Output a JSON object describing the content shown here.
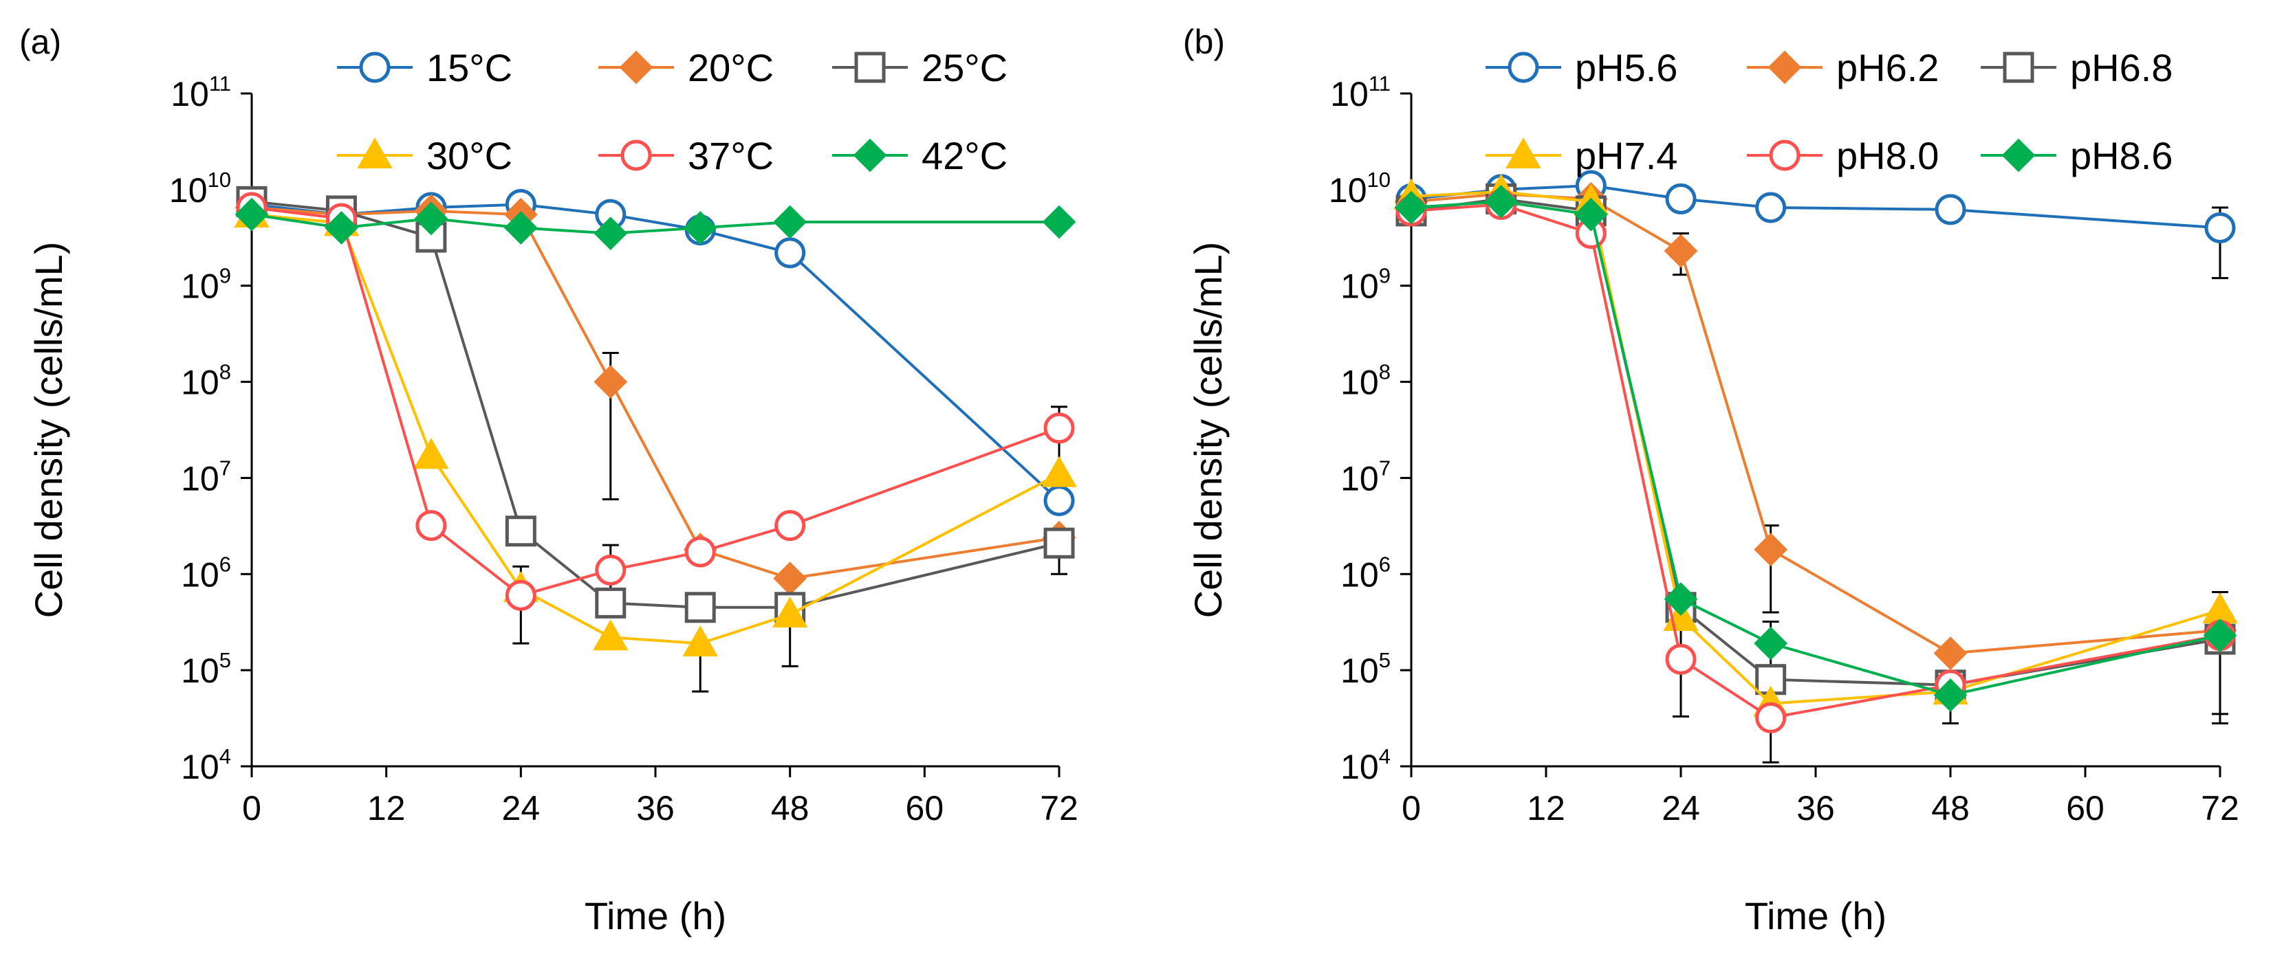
{
  "chart_data": [
    {
      "type": "line",
      "panel_label": "(a)",
      "xlabel": "Time (h)",
      "ylabel": "Cell density (cells/mL)",
      "yscale": "log",
      "xlim": [
        0,
        72
      ],
      "ylim": [
        10000,
        100000000000
      ],
      "x_ticks": [
        "0",
        "12",
        "24",
        "36",
        "48",
        "60",
        "72"
      ],
      "y_ticks": [
        {
          "base": "10",
          "exp": "4"
        },
        {
          "base": "10",
          "exp": "5"
        },
        {
          "base": "10",
          "exp": "6"
        },
        {
          "base": "10",
          "exp": "7"
        },
        {
          "base": "10",
          "exp": "8"
        },
        {
          "base": "10",
          "exp": "9"
        },
        {
          "base": "10",
          "exp": "10"
        },
        {
          "base": "10",
          "exp": "11"
        }
      ],
      "series": [
        {
          "name": "15°C",
          "color": "#1f6fb9",
          "marker": "circle",
          "x": [
            0,
            8,
            16,
            24,
            32,
            40,
            48,
            72
          ],
          "y": [
            7000000000,
            5500000000,
            6500000000,
            7000000000,
            5500000000,
            3800000000,
            2200000000,
            5800000
          ],
          "err": [
            0,
            0,
            0,
            0,
            0,
            0,
            0,
            0
          ]
        },
        {
          "name": "20°C",
          "color": "#ed7d31",
          "marker": "diamond",
          "x": [
            0,
            8,
            16,
            24,
            32,
            40,
            48,
            72
          ],
          "y": [
            6500000000,
            5500000000,
            6000000000,
            5500000000,
            100000000,
            1800000,
            900000,
            2400000
          ],
          "err": [
            0,
            0,
            0,
            0,
            200000000,
            0,
            0,
            0
          ]
        },
        {
          "name": "25°C",
          "color": "#595959",
          "marker": "square",
          "x": [
            0,
            8,
            16,
            24,
            32,
            40,
            48,
            72
          ],
          "y": [
            7500000000,
            6000000000,
            3200000000,
            2800000,
            500000,
            450000,
            450000,
            2100000
          ],
          "err": [
            0,
            0,
            0,
            0,
            0,
            0,
            0,
            0
          ]
        },
        {
          "name": "30°C",
          "color": "#ffc000",
          "marker": "triangle",
          "x": [
            0,
            8,
            16,
            24,
            32,
            40,
            48,
            72
          ],
          "y": [
            5500000000,
            4500000000,
            17000000,
            700000,
            220000,
            190000,
            380000,
            11000000
          ],
          "err": [
            0,
            0,
            0,
            0,
            0,
            0,
            0,
            0
          ]
        },
        {
          "name": "37°C",
          "color": "#ff5050",
          "marker": "circle",
          "x": [
            0,
            8,
            16,
            24,
            32,
            40,
            48,
            72
          ],
          "y": [
            6500000000,
            5000000000,
            3200000,
            600000,
            1100000,
            1700000,
            3200000,
            33000000
          ],
          "err": [
            0,
            0,
            0,
            0,
            0,
            0,
            0,
            0
          ]
        },
        {
          "name": "42°C",
          "color": "#00b050",
          "marker": "diamond",
          "x": [
            0,
            8,
            16,
            24,
            32,
            40,
            48,
            72
          ],
          "y": [
            5500000000,
            4000000000,
            5000000000,
            4000000000,
            3500000000,
            4000000000,
            4600000000,
            4600000000
          ],
          "err": [
            0,
            0,
            0,
            0,
            0,
            0,
            0,
            0
          ]
        }
      ],
      "error_bars": [
        {
          "x": 24,
          "y_low": 190000,
          "y_high": 1200000
        },
        {
          "x": 32,
          "y_low": 6000000,
          "y_high": 200000000
        },
        {
          "x": 32,
          "y_low": 500000,
          "y_high": 2000000
        },
        {
          "x": 40,
          "y_low": 60000,
          "y_high": 190000
        },
        {
          "x": 48,
          "y_low": 110000,
          "y_high": 380000
        },
        {
          "x": 72,
          "y_low": 1000000,
          "y_high": 2100000
        },
        {
          "x": 72,
          "y_low": 11000000,
          "y_high": 55000000
        }
      ]
    },
    {
      "type": "line",
      "panel_label": "(b)",
      "xlabel": "Time (h)",
      "ylabel": "Cell density (cells/mL)",
      "yscale": "log",
      "xlim": [
        0,
        72
      ],
      "ylim": [
        10000,
        100000000000
      ],
      "x_ticks": [
        "0",
        "12",
        "24",
        "36",
        "48",
        "60",
        "72"
      ],
      "y_ticks": [
        {
          "base": "10",
          "exp": "4"
        },
        {
          "base": "10",
          "exp": "5"
        },
        {
          "base": "10",
          "exp": "6"
        },
        {
          "base": "10",
          "exp": "7"
        },
        {
          "base": "10",
          "exp": "8"
        },
        {
          "base": "10",
          "exp": "9"
        },
        {
          "base": "10",
          "exp": "10"
        },
        {
          "base": "10",
          "exp": "11"
        }
      ],
      "series": [
        {
          "name": "pH5.6",
          "color": "#1f6fb9",
          "marker": "circle",
          "x": [
            0,
            8,
            16,
            24,
            32,
            48,
            72
          ],
          "y": [
            8000000000,
            10000000000,
            11000000000,
            8000000000,
            6500000000,
            6200000000,
            4000000000
          ],
          "err": [
            0,
            0,
            0,
            0,
            0,
            0,
            0
          ]
        },
        {
          "name": "pH6.2",
          "color": "#ed7d31",
          "marker": "diamond",
          "x": [
            0,
            8,
            16,
            24,
            32,
            48,
            72
          ],
          "y": [
            7500000000,
            9000000000,
            8000000000,
            2300000000,
            1800000,
            150000,
            260000
          ],
          "err": [
            0,
            0,
            0,
            0,
            0,
            0,
            0
          ]
        },
        {
          "name": "pH6.8",
          "color": "#595959",
          "marker": "square",
          "x": [
            0,
            8,
            16,
            24,
            32,
            48,
            72
          ],
          "y": [
            6000000000,
            8000000000,
            6000000000,
            450000,
            80000,
            70000,
            210000
          ],
          "err": [
            0,
            0,
            0,
            0,
            0,
            0,
            0
          ]
        },
        {
          "name": "pH7.4",
          "color": "#ffc000",
          "marker": "triangle",
          "x": [
            0,
            8,
            16,
            24,
            32,
            48,
            72
          ],
          "y": [
            8500000000,
            9500000000,
            7500000000,
            350000,
            45000,
            60000,
            420000
          ],
          "err": [
            0,
            0,
            0,
            0,
            0,
            0,
            0
          ]
        },
        {
          "name": "pH8.0",
          "color": "#ff5050",
          "marker": "circle",
          "x": [
            0,
            8,
            16,
            24,
            32,
            48,
            72
          ],
          "y": [
            6000000000,
            7000000000,
            3500000000,
            130000,
            32000,
            70000,
            230000
          ],
          "err": [
            0,
            0,
            0,
            0,
            0,
            0,
            0
          ]
        },
        {
          "name": "pH8.6",
          "color": "#00b050",
          "marker": "diamond",
          "x": [
            0,
            8,
            16,
            24,
            32,
            48,
            72
          ],
          "y": [
            6500000000,
            7500000000,
            5500000000,
            550000,
            190000,
            55000,
            230000
          ],
          "err": [
            0,
            0,
            0,
            0,
            0,
            0,
            0
          ]
        }
      ],
      "error_bars": [
        {
          "x": 24,
          "y_low": 1300000000,
          "y_high": 3500000000
        },
        {
          "x": 24,
          "y_low": 33000,
          "y_high": 450000
        },
        {
          "x": 32,
          "y_low": 11000,
          "y_high": 320000
        },
        {
          "x": 32,
          "y_low": 400000,
          "y_high": 3200000
        },
        {
          "x": 48,
          "y_low": 28000,
          "y_high": 70000
        },
        {
          "x": 72,
          "y_low": 28000,
          "y_high": 210000
        },
        {
          "x": 72,
          "y_low": 35000,
          "y_high": 230000
        },
        {
          "x": 72,
          "y_low": 230000,
          "y_high": 650000
        },
        {
          "x": 72,
          "y_low": 1200000000,
          "y_high": 6500000000
        }
      ]
    }
  ]
}
